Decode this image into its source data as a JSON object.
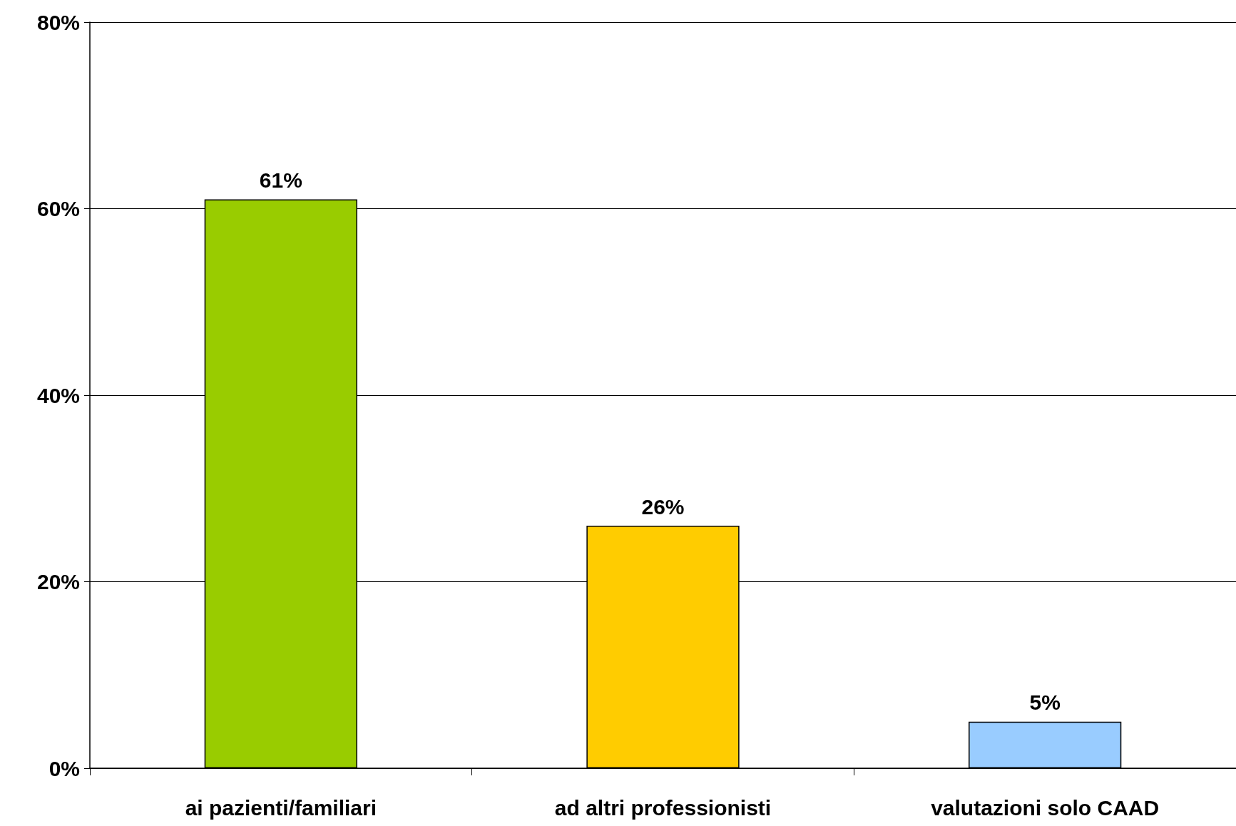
{
  "chart_data": {
    "type": "bar",
    "categories": [
      "ai pazienti/familiari",
      "ad altri professionisti",
      "valutazioni solo CAAD"
    ],
    "values": [
      61,
      26,
      5
    ],
    "colors": [
      "#99cc00",
      "#ffcc00",
      "#99ccff"
    ],
    "value_labels": [
      "61%",
      "26%",
      "5%"
    ],
    "ylim": [
      0,
      80
    ],
    "yticks": [
      {
        "value": 0,
        "label": "0%"
      },
      {
        "value": 20,
        "label": "20%"
      },
      {
        "value": 40,
        "label": "40%"
      },
      {
        "value": 60,
        "label": "60%"
      },
      {
        "value": 80,
        "label": "80%"
      }
    ],
    "grid": "y"
  }
}
